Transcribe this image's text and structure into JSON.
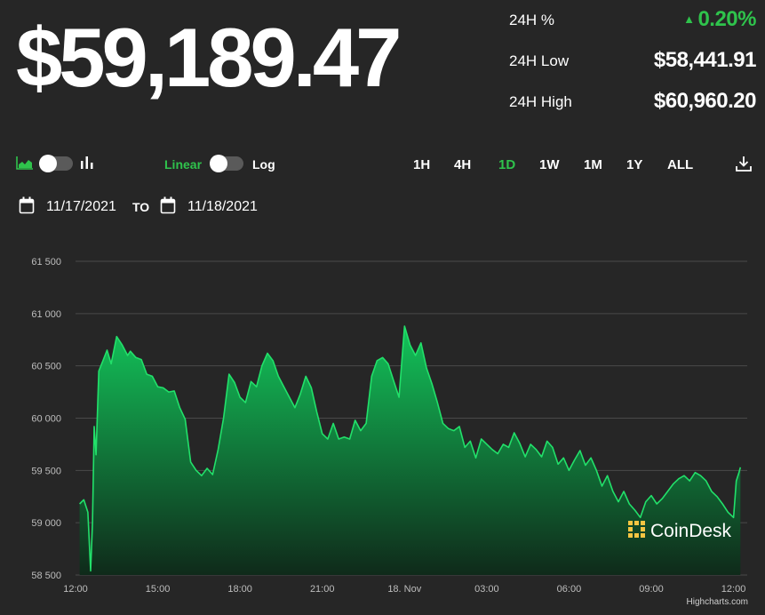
{
  "header": {
    "price": "$59,189.47"
  },
  "stats": [
    {
      "label": "24H %",
      "value": "0.20%",
      "direction": "up"
    },
    {
      "label": "24H Low",
      "value": "$58,441.91"
    },
    {
      "label": "24H High",
      "value": "$60,960.20"
    }
  ],
  "controls": {
    "chart_type_left_icon": "area-chart-icon",
    "chart_type_right_icon": "bar-chart-icon",
    "scale_linear": "Linear",
    "scale_log": "Log",
    "ranges": [
      "1H",
      "4H",
      "1D",
      "1W",
      "1M",
      "1Y",
      "ALL"
    ],
    "active_range": "1D",
    "download_icon": "download-icon"
  },
  "date_range": {
    "from": "11/17/2021",
    "to_label": "TO",
    "to": "11/18/2021"
  },
  "watermark": "CoinDesk",
  "credit": "Highcharts.com",
  "colors": {
    "accent": "#2fc34c",
    "line": "#22e06a",
    "fill_top": "#13c45a",
    "fill_bottom": "#0f2a1a",
    "background": "#262626",
    "grid": "#4a4a4a"
  },
  "chart_data": {
    "type": "area",
    "title": "",
    "xlabel": "",
    "ylabel": "",
    "ylim": [
      58500,
      61500
    ],
    "yticks": [
      58500,
      59000,
      59500,
      60000,
      60500,
      61000,
      61500
    ],
    "ytick_labels": [
      "58 500",
      "59 000",
      "59 500",
      "60 000",
      "60 500",
      "61 000",
      "61 500"
    ],
    "x_range_hours": [
      0,
      24.5
    ],
    "xticks": [
      0,
      3,
      6,
      9,
      12,
      15,
      18,
      21,
      24
    ],
    "xtick_labels": [
      "12:00",
      "15:00",
      "18:00",
      "21:00",
      "18. Nov",
      "03:00",
      "06:00",
      "09:00",
      "12:00"
    ],
    "grid": true,
    "legend": "none",
    "series": [
      {
        "x": [
          0.15,
          0.3,
          0.45,
          0.55,
          0.62,
          0.68,
          0.75,
          0.85,
          1.0,
          1.15,
          1.3,
          1.5,
          1.7,
          1.9,
          2.0,
          2.2,
          2.4,
          2.6,
          2.8,
          3.0,
          3.2,
          3.4,
          3.6,
          3.8,
          4.0,
          4.2,
          4.4,
          4.6,
          4.8,
          5.0,
          5.2,
          5.4,
          5.6,
          5.8,
          6.0,
          6.2,
          6.4,
          6.6,
          6.8,
          7.0,
          7.2,
          7.4,
          7.6,
          7.8,
          8.0,
          8.2,
          8.4,
          8.6,
          8.8,
          9.0,
          9.2,
          9.4,
          9.6,
          9.8,
          10.0,
          10.2,
          10.4,
          10.6,
          10.8,
          11.0,
          11.2,
          11.4,
          11.6,
          11.8,
          12.0,
          12.2,
          12.4,
          12.6,
          12.8,
          13.0,
          13.2,
          13.4,
          13.6,
          13.8,
          14.0,
          14.2,
          14.4,
          14.6,
          14.8,
          15.0,
          15.2,
          15.4,
          15.6,
          15.8,
          16.0,
          16.2,
          16.4,
          16.6,
          16.8,
          17.0,
          17.2,
          17.4,
          17.6,
          17.8,
          18.0,
          18.2,
          18.4,
          18.6,
          18.8,
          19.0,
          19.2,
          19.4,
          19.6,
          19.8,
          20.0,
          20.2,
          20.4,
          20.6,
          20.8,
          21.0,
          21.2,
          21.4,
          21.6,
          21.8,
          22.0,
          22.2,
          22.4,
          22.6,
          22.8,
          23.0,
          23.2,
          23.4,
          23.6,
          23.8,
          24.0,
          24.1,
          24.2,
          24.25
        ],
        "y": [
          59180,
          59220,
          59100,
          58540,
          59000,
          59920,
          59650,
          60450,
          60550,
          60650,
          60520,
          60780,
          60700,
          60600,
          60640,
          60580,
          60560,
          60420,
          60400,
          60300,
          60290,
          60250,
          60260,
          60100,
          59990,
          59580,
          59500,
          59450,
          59520,
          59460,
          59700,
          60000,
          60420,
          60340,
          60200,
          60150,
          60350,
          60300,
          60500,
          60620,
          60550,
          60400,
          60300,
          60200,
          60100,
          60230,
          60400,
          60290,
          60060,
          59850,
          59800,
          59950,
          59800,
          59820,
          59800,
          59980,
          59880,
          59950,
          60400,
          60550,
          60580,
          60520,
          60360,
          60200,
          60880,
          60700,
          60600,
          60720,
          60480,
          60330,
          60150,
          59950,
          59900,
          59880,
          59920,
          59720,
          59780,
          59620,
          59800,
          59750,
          59700,
          59660,
          59750,
          59720,
          59860,
          59760,
          59630,
          59750,
          59700,
          59630,
          59780,
          59720,
          59560,
          59620,
          59500,
          59600,
          59690,
          59550,
          59620,
          59500,
          59350,
          59450,
          59300,
          59200,
          59300,
          59180,
          59120,
          59050,
          59200,
          59260,
          59180,
          59230,
          59300,
          59370,
          59420,
          59450,
          59400,
          59480,
          59450,
          59400,
          59300,
          59250,
          59180,
          59100,
          59050,
          59400,
          59480,
          59530
        ]
      }
    ]
  }
}
